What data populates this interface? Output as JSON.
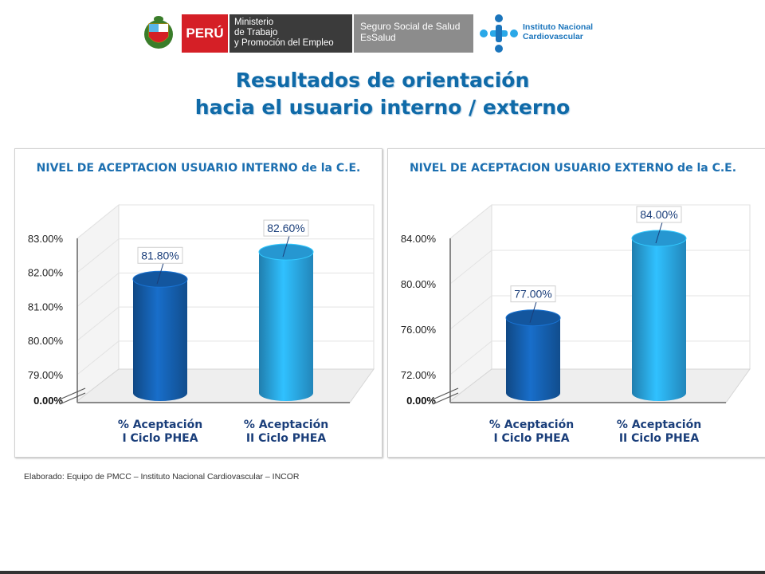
{
  "header": {
    "peru": "PERÚ",
    "ministry_line1": "Ministerio",
    "ministry_line2": "de Trabajo",
    "ministry_line3": "y Promoción del Empleo",
    "essalud_line1": "Seguro Social de Salud",
    "essalud_line2": "EsSalud",
    "incor_line1": "Instituto Nacional",
    "incor_line2": "Cardiovascular"
  },
  "title_line1": "Resultados de orientación",
  "title_line2": "hacia el usuario interno / externo",
  "credit": "Elaborado: Equipo de PMCC – Instituto Nacional Cardiovascular – INCOR",
  "colors": {
    "dark_bar": "#1560b0",
    "light_bar": "#2aa8e8",
    "title": "#0f6aa8",
    "chart_title": "#1c6fb0",
    "axis_label": "#1a3e7a"
  },
  "chart_data": [
    {
      "type": "bar",
      "title": "NIVEL DE ACEPTACION USUARIO INTERNO de la C.E.",
      "categories": [
        [
          "% Aceptación",
          "I Ciclo PHEA"
        ],
        [
          "% Aceptación",
          "II Ciclo PHEA"
        ]
      ],
      "values": [
        81.8,
        82.6
      ],
      "value_labels": [
        "81.80%",
        "82.60%"
      ],
      "y_ticks": [
        79,
        80,
        81,
        82,
        83
      ],
      "y_tick_labels": [
        "79.00%",
        "80.00%",
        "81.00%",
        "82.00%",
        "83.00%"
      ],
      "y_base_label": "0.00%",
      "ylim": [
        78.6,
        83.0
      ],
      "axis_break": true
    },
    {
      "type": "bar",
      "title": "NIVEL DE ACEPTACION USUARIO EXTERNO de la C.E.",
      "categories": [
        [
          "% Aceptación",
          "I Ciclo PHEA"
        ],
        [
          "% Aceptación",
          "II Ciclo PHEA"
        ]
      ],
      "values": [
        77.0,
        84.0
      ],
      "value_labels": [
        "77.00%",
        "84.00%"
      ],
      "y_ticks": [
        72,
        76,
        80,
        84
      ],
      "y_tick_labels": [
        "72.00%",
        "76.00%",
        "80.00%",
        "84.00%"
      ],
      "y_base_label": "0.00%",
      "ylim": [
        70.8,
        84.0
      ],
      "axis_break": true
    }
  ]
}
